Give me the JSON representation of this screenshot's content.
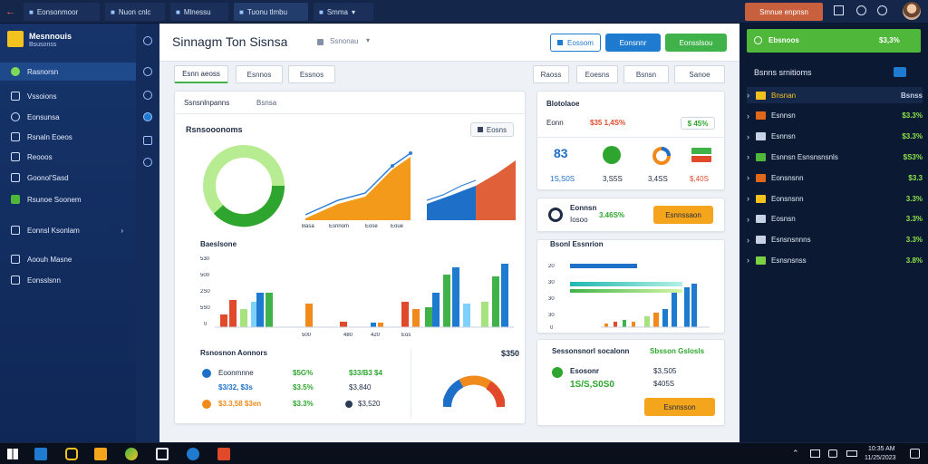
{
  "topbar": {
    "back_icon": "back-arrow-icon",
    "tabs": [
      {
        "label": "Eonsonmoor"
      },
      {
        "label": "Nuon cnlc"
      },
      {
        "label": "Mlnessu"
      },
      {
        "label": "Tuonu tlmbu"
      },
      {
        "label": "Smma"
      }
    ],
    "account_label": "Smnue enpnsn"
  },
  "sidebar": {
    "logo_title": "Mesnnouis",
    "logo_sub": "Bsusonss",
    "items": [
      {
        "label": "Rasnorsn",
        "icon": "home-icon"
      },
      {
        "label": "Vssoions",
        "icon": "grid-icon"
      },
      {
        "label": "Eonsunsa",
        "icon": "chart-icon"
      },
      {
        "label": "Rsnaln Eoeos",
        "icon": "doc-icon"
      },
      {
        "label": "Reooos",
        "icon": "bell-icon"
      },
      {
        "label": "Goonol'Sasd",
        "icon": "box-icon"
      },
      {
        "label": "Rsunoe Soonem",
        "icon": "gear-icon"
      },
      {
        "label": "Eonnsl Ksonlam",
        "icon": "layers-icon"
      },
      {
        "label": "Aoouh Masne",
        "icon": "user-icon"
      },
      {
        "label": "Eonsslsnn",
        "icon": "settings-icon"
      }
    ]
  },
  "header": {
    "title": "Sinnagm Ton Sisnsa",
    "breadcrumb": "Ssnonau",
    "btn_secondary": "Eossom",
    "btn_primary": "Eonsnnr",
    "btn_green": "Eonsslsou"
  },
  "tabs": [
    "Esnn aeoss",
    "Esnnos",
    "Essnos"
  ],
  "filters": [
    "Raoss",
    "Eoesns",
    "Bsnsn",
    "Sanoe"
  ],
  "card_main": {
    "subtabs": [
      "Ssnsnlnpanns",
      "Bsnsa"
    ],
    "title": "Rsnsooonoms",
    "export_label": "Eosns",
    "bar_title": "Baeslsone",
    "bar_axis_labels": [
      "530",
      "500",
      "2S0",
      "5S0",
      "0"
    ],
    "area_labels": [
      "Basa",
      "Esnnom",
      "Eose",
      "Eoue"
    ],
    "bar_chart_labels": [
      "500",
      "480",
      "420",
      "Eos"
    ],
    "list_title": "Rsnosnon Aonnors",
    "list_value_right": "$350",
    "list_rows": [
      {
        "name": "Eoonmnne",
        "pct": "$5G%",
        "val": "$33/B3 $4"
      },
      {
        "name": "$3/32, $3s",
        "pct": "$3.5%",
        "val": "$3,840"
      },
      {
        "name": "$3.3,58 $3en",
        "pct": "$3.3%",
        "val": "$3,520"
      }
    ]
  },
  "card_stats": {
    "title": "Blotolaoe",
    "value_label": "Eonn",
    "value": "$35 1,4S%",
    "badge": "$ 45%",
    "stat_value": "83",
    "sub_labels": [
      "1S,S0S",
      "3,S5S",
      "3,4SS",
      "$,40S"
    ]
  },
  "card_user": {
    "name": "Eonnsn",
    "sub": "Iosoo",
    "pct": "3.46S%",
    "btn": "Esnnssaon"
  },
  "card_bars": {
    "title": "Bsonl Essnrion",
    "axis_labels": [
      "20",
      "30",
      "30",
      "30",
      "0"
    ]
  },
  "card_summary": {
    "title": "Sessonsnorl socalonn",
    "link": "Sbsson Gslosls",
    "name": "Esosonr",
    "value": "1S/S,S0S0",
    "small_val": "$3,S05",
    "small_val2": "$405S",
    "btn": "Esnnsson"
  },
  "right_panel": {
    "top_label": "Ebsnoos",
    "top_value": "$3,3%",
    "section_title": "Bsnns srnitioms",
    "rows": [
      {
        "name": "Bnsnan",
        "pct": "Bsnss",
        "color": "#f4c21e"
      },
      {
        "name": "Esnnsn",
        "pct": "$3.3%",
        "color": "#e0681b"
      },
      {
        "name": "Esnnsn",
        "pct": "$3.3%",
        "color": "#c7d2e6"
      },
      {
        "name": "Esnnsn Esnsnsnsnls",
        "pct": "$S3%",
        "color": "#4fb73a"
      },
      {
        "name": "Eonsnsnn",
        "pct": "$3.3",
        "color": "#e0681b"
      },
      {
        "name": "Eonsnsnn",
        "pct": "3.3%",
        "color": "#f4c21e"
      },
      {
        "name": "Eosnsn",
        "pct": "3.3%",
        "color": "#c7d2e6"
      },
      {
        "name": "Esnsnsnnns",
        "pct": "3.3%",
        "color": "#c7d2e6"
      },
      {
        "name": "Esnsnsnss",
        "pct": "3.8%",
        "color": "#7bd045"
      }
    ]
  },
  "taskbar": {
    "time": "10:35 AM",
    "date": "11/25/2023"
  },
  "colors": {
    "blue": "#1e7bd0",
    "green": "#3fb349",
    "orange": "#f08a1c",
    "red": "#e04a2a",
    "lime": "#7ed957"
  }
}
